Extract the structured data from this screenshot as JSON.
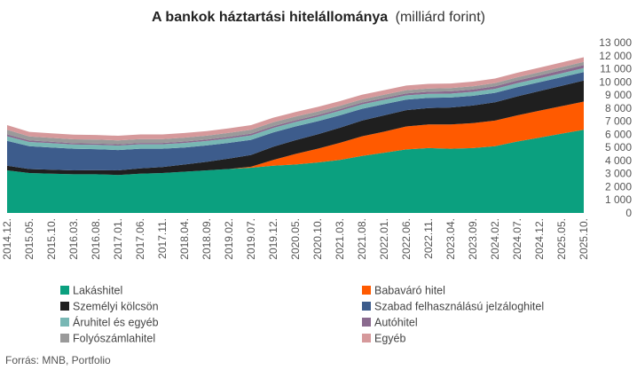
{
  "chart_data": {
    "type": "area",
    "stacked": true,
    "title": "A bankok háztartási hitelállománya",
    "unit": "(milliárd forint)",
    "source": "Forrás: MNB, Portfolio",
    "ylim": [
      0,
      13000
    ],
    "y_ticks": [
      0,
      1000,
      2000,
      3000,
      4000,
      5000,
      6000,
      7000,
      8000,
      9000,
      10000,
      11000,
      12000,
      13000
    ],
    "y_tick_labels": [
      "0",
      "1 000",
      "2 000",
      "3 000",
      "4 000",
      "5 000",
      "6 000",
      "7 000",
      "8 000",
      "9 000",
      "10 000",
      "11 000",
      "12 000",
      "13 000"
    ],
    "y_axis_side": "right",
    "x_tick_labels": [
      "2014.12.",
      "2015.05.",
      "2015.10.",
      "2016.03.",
      "2016.08.",
      "2017.01.",
      "2017.06.",
      "2017.11.",
      "2018.04.",
      "2018.09.",
      "2019.02.",
      "2019.07.",
      "2019.12.",
      "2020.05.",
      "2020.10.",
      "2021.03.",
      "2021.08.",
      "2022.01.",
      "2022.06.",
      "2022.11.",
      "2023.04.",
      "2023.09.",
      "2024.02.",
      "2024.07.",
      "2024.12.",
      "2025.05.",
      "2025.10."
    ],
    "grid": false,
    "legend_position": "bottom",
    "x_start": "2014.12.",
    "x_step_months": 5,
    "series": [
      {
        "name": "Lakáshitel",
        "color": "#0ba07f",
        "values": [
          3250,
          3050,
          3000,
          2950,
          2950,
          2900,
          3000,
          3050,
          3150,
          3250,
          3350,
          3450,
          3600,
          3700,
          3850,
          4050,
          4350,
          4600,
          4850,
          4950,
          4900,
          4950,
          5100,
          5450,
          5750,
          6050,
          6350
        ]
      },
      {
        "name": "Babaváró hitel",
        "color": "#ff5a00",
        "values": [
          0,
          0,
          0,
          0,
          0,
          0,
          0,
          0,
          0,
          0,
          0,
          80,
          450,
          800,
          1050,
          1300,
          1500,
          1600,
          1750,
          1800,
          1850,
          1900,
          1950,
          2000,
          2050,
          2100,
          2150
        ]
      },
      {
        "name": "Személyi kölcsön",
        "color": "#1f1f1f",
        "values": [
          350,
          300,
          300,
          300,
          320,
          350,
          400,
          450,
          550,
          650,
          800,
          900,
          1000,
          1050,
          1100,
          1150,
          1200,
          1250,
          1250,
          1250,
          1300,
          1350,
          1400,
          1450,
          1500,
          1550,
          1600
        ]
      },
      {
        "name": "Szabad felhasználású jelzáloghitel",
        "color": "#3d5c8c",
        "values": [
          1900,
          1750,
          1700,
          1650,
          1600,
          1550,
          1500,
          1400,
          1300,
          1250,
          1200,
          1150,
          1100,
          1050,
          1000,
          950,
          900,
          850,
          800,
          780,
          760,
          740,
          720,
          700,
          680,
          660,
          650
        ]
      },
      {
        "name": "Áruhitel és egyéb",
        "color": "#78b7b4",
        "values": [
          350,
          320,
          320,
          320,
          330,
          340,
          340,
          340,
          340,
          340,
          340,
          340,
          340,
          340,
          340,
          340,
          340,
          330,
          320,
          310,
          300,
          300,
          300,
          300,
          300,
          300,
          300
        ]
      },
      {
        "name": "Autóhitel",
        "color": "#8a6a8e",
        "values": [
          150,
          120,
          110,
          100,
          100,
          100,
          100,
          100,
          110,
          110,
          120,
          130,
          130,
          130,
          130,
          130,
          130,
          140,
          150,
          160,
          170,
          180,
          190,
          200,
          210,
          220,
          230
        ]
      },
      {
        "name": "Folyószámlahitel",
        "color": "#9a9a9a",
        "values": [
          350,
          300,
          300,
          300,
          300,
          300,
          300,
          300,
          300,
          300,
          300,
          300,
          300,
          280,
          270,
          260,
          250,
          250,
          250,
          250,
          250,
          250,
          250,
          250,
          250,
          250,
          250
        ]
      },
      {
        "name": "Egyéb",
        "color": "#d6999b",
        "values": [
          350,
          350,
          350,
          350,
          350,
          350,
          350,
          350,
          350,
          350,
          350,
          350,
          350,
          350,
          350,
          350,
          350,
          350,
          350,
          350,
          350,
          350,
          350,
          350,
          350,
          350,
          350
        ]
      }
    ]
  }
}
